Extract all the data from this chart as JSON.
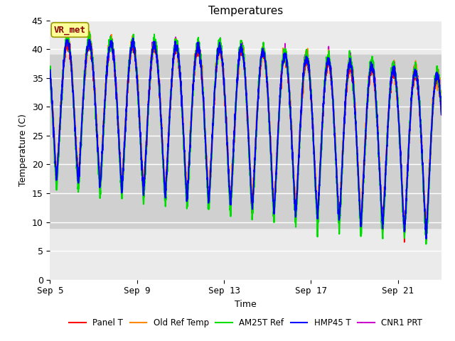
{
  "title": "Temperatures",
  "xlabel": "Time",
  "ylabel": "Temperature (C)",
  "ylim": [
    0,
    45
  ],
  "yticks": [
    0,
    5,
    10,
    15,
    20,
    25,
    30,
    35,
    40,
    45
  ],
  "xtick_labels": [
    "Sep 5",
    "Sep 9",
    "Sep 13",
    "Sep 17",
    "Sep 21"
  ],
  "xtick_positions": [
    0,
    4,
    8,
    12,
    16
  ],
  "n_days": 18,
  "annotation_text": "VR_met",
  "legend_labels": [
    "Panel T",
    "Old Ref Temp",
    "AM25T Ref",
    "HMP45 T",
    "CNR1 PRT"
  ],
  "line_colors": [
    "#ff0000",
    "#ff8800",
    "#00dd00",
    "#0000ff",
    "#cc00cc"
  ],
  "line_widths": [
    1.2,
    1.2,
    1.5,
    1.5,
    1.2
  ],
  "fig_bg_color": "#ffffff",
  "plot_bg_color": "#ebebeb",
  "band_low": 9,
  "band_high": 39,
  "band_color": "#d0d0d0",
  "grid_color": "#ffffff"
}
